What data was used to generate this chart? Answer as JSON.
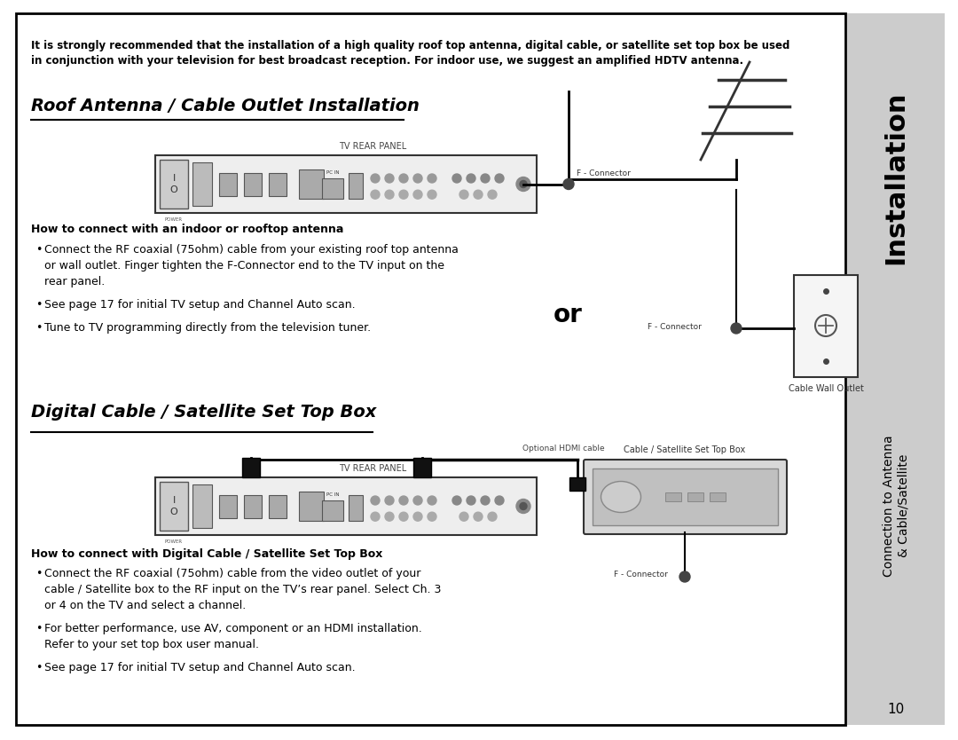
{
  "bg_color": "#ffffff",
  "sidebar_color": "#cccccc",
  "intro_text_line1": "It is strongly recommended that the installation of a high quality roof top antenna, digital cable, or satellite set top box be used",
  "intro_text_line2": "in conjunction with your television for best broadcast reception. For indoor use, we suggest an amplified HDTV antenna.",
  "section1_title": "Roof Antenna / Cable Outlet Installation",
  "section2_title": "Digital Cable / Satellite Set Top Box",
  "sidebar_top_text": "Installation",
  "how_to_1": "How to connect with an indoor or rooftop antenna",
  "how_to_2": "How to connect with Digital Cable / Satellite Set Top Box",
  "bullet1_1a": "Connect the RF coaxial (75ohm) cable from your existing roof top antenna",
  "bullet1_1b": "or wall outlet. Finger tighten the F-Connector end to the TV input on the",
  "bullet1_1c": "rear panel.",
  "bullet1_2": "See page 17 for initial TV setup and Channel Auto scan.",
  "bullet1_3": "Tune to TV programming directly from the television tuner.",
  "bullet2_1a": "Connect the RF coaxial (75ohm) cable from the video outlet of your",
  "bullet2_1b": "cable / Satellite box to the RF input on the TV’s rear panel. Select Ch. 3",
  "bullet2_1c": "or 4 on the TV and select a channel.",
  "bullet2_2a": "For better performance, use AV, component or an HDMI installation.",
  "bullet2_2b": "Refer to your set top box user manual.",
  "bullet2_3": "See page 17 for initial TV setup and Channel Auto scan.",
  "tv_rear_panel_label": "TV REAR PANEL",
  "f_connector_label1": "F - Connector",
  "f_connector_label2": "F - Connector",
  "f_connector_label3": "F - Connector",
  "cable_wall_label": "Cable Wall Outlet",
  "cable_sat_label": "Cable / Satellite Set Top Box",
  "optional_hdmi_label": "Optional HDMI cable",
  "or_text": "or",
  "page_number": "10"
}
